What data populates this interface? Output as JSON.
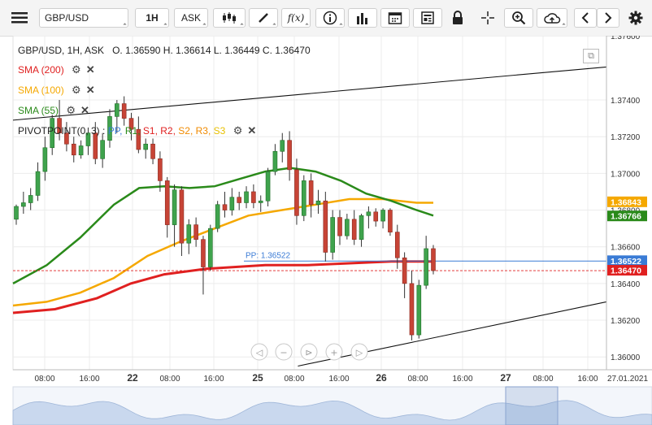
{
  "toolbar": {
    "symbol": "GBP/USD",
    "timeframe": "1H",
    "price_type": "ASK",
    "fx_label": "f(x)"
  },
  "ohlc_line": {
    "label": "GBP/USD, 1H, ASK",
    "open": "O. 1.36590",
    "high": "H. 1.36614",
    "low": "L. 1.36449",
    "close": "C. 1.36470"
  },
  "indicators": [
    {
      "label": "SMA (200)",
      "color": "#e02020"
    },
    {
      "label": "SMA (100)",
      "color": "#f5a800"
    },
    {
      "label": "SMA (55)",
      "color": "#2a8a1a"
    }
  ],
  "pivot": {
    "label": "PIVOTPOINT(0, 3)",
    "sep": ":",
    "items": [
      {
        "label": "PP,",
        "color": "#3a7bd5"
      },
      {
        "label": "R1,",
        "color": "#2a8a1a"
      },
      {
        "label": "S1,",
        "color": "#e02020"
      },
      {
        "label": "R2,",
        "color": "#e02020"
      },
      {
        "label": "S2,",
        "color": "#f08a00"
      },
      {
        "label": "R3,",
        "color": "#f08a00"
      },
      {
        "label": "S3",
        "color": "#e8c000"
      }
    ]
  },
  "chart_data": {
    "type": "candlestick",
    "ylim": [
      1.3593,
      1.3775
    ],
    "y_ticks": [
      "1.37400",
      "1.37200",
      "1.37000",
      "1.36800",
      "1.36600",
      "1.36400",
      "1.36200",
      "1.36000"
    ],
    "y_tick_values": [
      1.374,
      1.372,
      1.37,
      1.368,
      1.366,
      1.364,
      1.362,
      1.36
    ],
    "top_tick": "1.37600",
    "x_ticks": [
      "08:00",
      "16:00",
      "22",
      "08:00",
      "16:00",
      "25",
      "08:00",
      "16:00",
      "26",
      "08:00",
      "16:00",
      "27",
      "08:00",
      "16:00",
      "27.01.2021"
    ],
    "x_major_ticks": [
      "22",
      "25",
      "26",
      "27"
    ],
    "candles": [
      {
        "o": 1.3675,
        "h": 1.3683,
        "l": 1.3672,
        "c": 1.3682
      },
      {
        "o": 1.3682,
        "h": 1.369,
        "l": 1.3678,
        "c": 1.3684
      },
      {
        "o": 1.3684,
        "h": 1.3692,
        "l": 1.368,
        "c": 1.3688
      },
      {
        "o": 1.3688,
        "h": 1.3706,
        "l": 1.3685,
        "c": 1.3701
      },
      {
        "o": 1.3701,
        "h": 1.372,
        "l": 1.3696,
        "c": 1.3714
      },
      {
        "o": 1.3714,
        "h": 1.3732,
        "l": 1.371,
        "c": 1.373
      },
      {
        "o": 1.373,
        "h": 1.374,
        "l": 1.3718,
        "c": 1.3722
      },
      {
        "o": 1.3722,
        "h": 1.3728,
        "l": 1.3712,
        "c": 1.3716
      },
      {
        "o": 1.3716,
        "h": 1.372,
        "l": 1.3706,
        "c": 1.371
      },
      {
        "o": 1.371,
        "h": 1.3718,
        "l": 1.3708,
        "c": 1.3715
      },
      {
        "o": 1.3715,
        "h": 1.3725,
        "l": 1.371,
        "c": 1.3722
      },
      {
        "o": 1.3722,
        "h": 1.3728,
        "l": 1.3705,
        "c": 1.3708
      },
      {
        "o": 1.3708,
        "h": 1.3722,
        "l": 1.3703,
        "c": 1.3718
      },
      {
        "o": 1.3718,
        "h": 1.3735,
        "l": 1.3714,
        "c": 1.3731
      },
      {
        "o": 1.3731,
        "h": 1.374,
        "l": 1.3722,
        "c": 1.3738
      },
      {
        "o": 1.3738,
        "h": 1.3742,
        "l": 1.3726,
        "c": 1.373
      },
      {
        "o": 1.373,
        "h": 1.3733,
        "l": 1.3718,
        "c": 1.3724
      },
      {
        "o": 1.3724,
        "h": 1.3731,
        "l": 1.3711,
        "c": 1.3713
      },
      {
        "o": 1.3713,
        "h": 1.3719,
        "l": 1.3708,
        "c": 1.3716
      },
      {
        "o": 1.3716,
        "h": 1.3719,
        "l": 1.3705,
        "c": 1.3708
      },
      {
        "o": 1.3708,
        "h": 1.3712,
        "l": 1.369,
        "c": 1.3696
      },
      {
        "o": 1.3696,
        "h": 1.3698,
        "l": 1.3665,
        "c": 1.3672
      },
      {
        "o": 1.3672,
        "h": 1.3694,
        "l": 1.366,
        "c": 1.3691
      },
      {
        "o": 1.3691,
        "h": 1.3693,
        "l": 1.3655,
        "c": 1.3662
      },
      {
        "o": 1.3662,
        "h": 1.3675,
        "l": 1.3656,
        "c": 1.3672
      },
      {
        "o": 1.3672,
        "h": 1.3676,
        "l": 1.366,
        "c": 1.3664
      },
      {
        "o": 1.3664,
        "h": 1.3666,
        "l": 1.3634,
        "c": 1.3649
      },
      {
        "o": 1.3649,
        "h": 1.3672,
        "l": 1.3647,
        "c": 1.367
      },
      {
        "o": 1.367,
        "h": 1.3685,
        "l": 1.3668,
        "c": 1.3683
      },
      {
        "o": 1.3683,
        "h": 1.369,
        "l": 1.3676,
        "c": 1.368
      },
      {
        "o": 1.368,
        "h": 1.3692,
        "l": 1.3677,
        "c": 1.3687
      },
      {
        "o": 1.3687,
        "h": 1.369,
        "l": 1.368,
        "c": 1.3684
      },
      {
        "o": 1.3684,
        "h": 1.3693,
        "l": 1.3681,
        "c": 1.369
      },
      {
        "o": 1.369,
        "h": 1.3694,
        "l": 1.3681,
        "c": 1.3684
      },
      {
        "o": 1.3684,
        "h": 1.3688,
        "l": 1.3679,
        "c": 1.3685
      },
      {
        "o": 1.3685,
        "h": 1.3703,
        "l": 1.3682,
        "c": 1.3701
      },
      {
        "o": 1.3701,
        "h": 1.3716,
        "l": 1.3699,
        "c": 1.3712
      },
      {
        "o": 1.3712,
        "h": 1.3722,
        "l": 1.3706,
        "c": 1.3718
      },
      {
        "o": 1.3718,
        "h": 1.3723,
        "l": 1.3696,
        "c": 1.3702
      },
      {
        "o": 1.3702,
        "h": 1.3708,
        "l": 1.3672,
        "c": 1.3677
      },
      {
        "o": 1.3677,
        "h": 1.3699,
        "l": 1.3674,
        "c": 1.3696
      },
      {
        "o": 1.3696,
        "h": 1.37,
        "l": 1.3676,
        "c": 1.3683
      },
      {
        "o": 1.3683,
        "h": 1.3691,
        "l": 1.3678,
        "c": 1.3685
      },
      {
        "o": 1.3685,
        "h": 1.369,
        "l": 1.3652,
        "c": 1.3657
      },
      {
        "o": 1.3657,
        "h": 1.368,
        "l": 1.3653,
        "c": 1.3676
      },
      {
        "o": 1.3676,
        "h": 1.368,
        "l": 1.3661,
        "c": 1.3666
      },
      {
        "o": 1.3666,
        "h": 1.3678,
        "l": 1.3664,
        "c": 1.3675
      },
      {
        "o": 1.3675,
        "h": 1.368,
        "l": 1.3661,
        "c": 1.3664
      },
      {
        "o": 1.3664,
        "h": 1.3678,
        "l": 1.366,
        "c": 1.3677
      },
      {
        "o": 1.3677,
        "h": 1.3682,
        "l": 1.367,
        "c": 1.3679
      },
      {
        "o": 1.3679,
        "h": 1.3681,
        "l": 1.3671,
        "c": 1.3674
      },
      {
        "o": 1.3674,
        "h": 1.3681,
        "l": 1.367,
        "c": 1.368
      },
      {
        "o": 1.368,
        "h": 1.3681,
        "l": 1.3666,
        "c": 1.3668
      },
      {
        "o": 1.3668,
        "h": 1.3672,
        "l": 1.3648,
        "c": 1.3654
      },
      {
        "o": 1.3654,
        "h": 1.3657,
        "l": 1.3632,
        "c": 1.364
      },
      {
        "o": 1.364,
        "h": 1.3647,
        "l": 1.3609,
        "c": 1.3612
      },
      {
        "o": 1.3612,
        "h": 1.3642,
        "l": 1.361,
        "c": 1.3639
      },
      {
        "o": 1.3639,
        "h": 1.3666,
        "l": 1.3637,
        "c": 1.3659
      },
      {
        "o": 1.3659,
        "h": 1.3661,
        "l": 1.3645,
        "c": 1.3647
      }
    ],
    "sma200": [
      [
        0,
        1.3624
      ],
      [
        10,
        1.3626
      ],
      [
        20,
        1.3632
      ],
      [
        28,
        1.364
      ],
      [
        36,
        1.3645
      ],
      [
        46,
        1.3648
      ],
      [
        60,
        1.365
      ],
      [
        70,
        1.365
      ],
      [
        80,
        1.3651
      ],
      [
        90,
        1.3652
      ],
      [
        100,
        1.3652
      ]
    ],
    "sma100": [
      [
        0,
        1.3628
      ],
      [
        8,
        1.363
      ],
      [
        16,
        1.3635
      ],
      [
        24,
        1.3643
      ],
      [
        32,
        1.3655
      ],
      [
        40,
        1.3663
      ],
      [
        48,
        1.367
      ],
      [
        56,
        1.3677
      ],
      [
        64,
        1.368
      ],
      [
        72,
        1.3683
      ],
      [
        80,
        1.3686
      ],
      [
        88,
        1.3686
      ],
      [
        96,
        1.3684
      ],
      [
        100,
        1.3684
      ]
    ],
    "sma55": [
      [
        0,
        1.364
      ],
      [
        8,
        1.365
      ],
      [
        16,
        1.3665
      ],
      [
        24,
        1.3683
      ],
      [
        30,
        1.3692
      ],
      [
        36,
        1.3693
      ],
      [
        42,
        1.3692
      ],
      [
        48,
        1.3693
      ],
      [
        54,
        1.3697
      ],
      [
        60,
        1.3701
      ],
      [
        66,
        1.3703
      ],
      [
        72,
        1.3701
      ],
      [
        78,
        1.3696
      ],
      [
        84,
        1.3689
      ],
      [
        90,
        1.3685
      ],
      [
        96,
        1.368
      ],
      [
        100,
        1.3677
      ]
    ],
    "pp_label": "PP: 1.36522",
    "pp_value": 1.36522,
    "last_price": "1.36470",
    "price_tags": [
      {
        "label": "1.36843",
        "value": 1.36843,
        "color": "#f5a800"
      },
      {
        "label": "1.36766",
        "value": 1.36766,
        "color": "#2a8a1a"
      },
      {
        "label": "1.36522",
        "value": 1.36522,
        "color": "#3a7bd5"
      },
      {
        "label": "1.36470",
        "value": 1.3647,
        "color": "#e02020"
      }
    ],
    "trendlines": [
      {
        "from": [
          0,
          1.3729
        ],
        "to": [
          100,
          1.3758
        ]
      },
      {
        "from": [
          48,
          1.3595
        ],
        "to": [
          100,
          1.363
        ]
      }
    ]
  }
}
